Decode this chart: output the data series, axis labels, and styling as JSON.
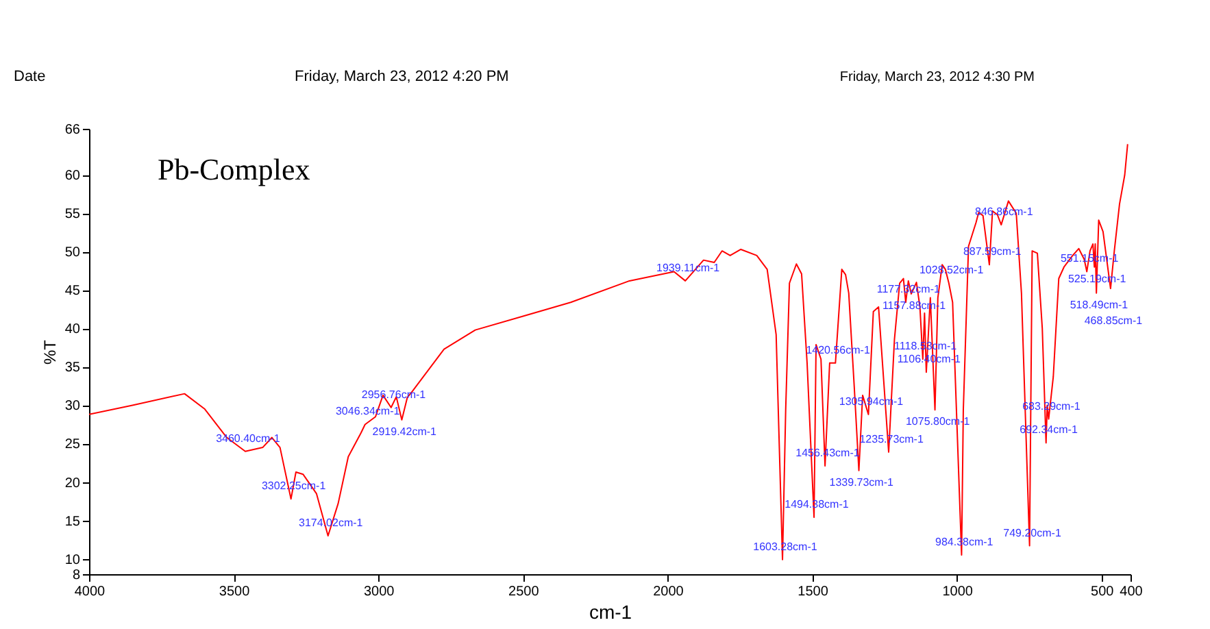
{
  "chart_data": {
    "type": "line",
    "title": "Pb-Complex",
    "xlabel": "cm-1",
    "ylabel": "%T",
    "annotations": [
      "Date",
      "Friday, March 23, 2012 4:20 PM",
      "Friday, March 23, 2012 4:30 PM",
      {
        "text": "3460.40cm-1",
        "x": 3460.4,
        "y": 24.0
      },
      {
        "text": "3302.25cm-1",
        "x": 3302.25,
        "y": 17.8
      },
      {
        "text": "3174.02cm-1",
        "x": 3174.02,
        "y": 13.0
      },
      {
        "text": "3046.34cm-1",
        "x": 3046.34,
        "y": 27.5
      },
      {
        "text": "2956.76cm-1",
        "x": 2956.76,
        "y": 29.7
      },
      {
        "text": "2919.42cm-1",
        "x": 2919.42,
        "y": 28.1
      },
      {
        "text": "1939.11cm-1",
        "x": 1939.11,
        "y": 46.2
      },
      {
        "text": "1603.28cm-1",
        "x": 1603.28,
        "y": 9.9
      },
      {
        "text": "1494.38cm-1",
        "x": 1494.38,
        "y": 15.4
      },
      {
        "text": "1456.43cm-1",
        "x": 1456.43,
        "y": 22.1
      },
      {
        "text": "1420.56cm-1",
        "x": 1420.56,
        "y": 35.5
      },
      {
        "text": "1339.73cm-1",
        "x": 1339.73,
        "y": 21.5
      },
      {
        "text": "1305.94cm-1",
        "x": 1305.94,
        "y": 28.8
      },
      {
        "text": "1235.73cm-1",
        "x": 1235.73,
        "y": 23.9
      },
      {
        "text": "1177.32cm-1",
        "x": 1177.32,
        "y": 43.4
      },
      {
        "text": "1157.88cm-1",
        "x": 1157.88,
        "y": 44.5
      },
      {
        "text": "1118.53cm-1",
        "x": 1118.53,
        "y": 36.0
      },
      {
        "text": "1106.40cm-1",
        "x": 1106.4,
        "y": 34.3
      },
      {
        "text": "1075.80cm-1",
        "x": 1075.8,
        "y": 29.4
      },
      {
        "text": "1028.52cm-1",
        "x": 1028.52,
        "y": 45.9
      },
      {
        "text": "984.38cm-1",
        "x": 984.38,
        "y": 10.5
      },
      {
        "text": "887.59cm-1",
        "x": 887.59,
        "y": 48.3
      },
      {
        "text": "846.86cm-1",
        "x": 846.86,
        "y": 53.5
      },
      {
        "text": "749.20cm-1",
        "x": 749.2,
        "y": 11.7
      },
      {
        "text": "692.34cm-1",
        "x": 692.34,
        "y": 25.1
      },
      {
        "text": "683.29cm-1",
        "x": 683.29,
        "y": 28.2
      },
      {
        "text": "551.15cm-1",
        "x": 551.15,
        "y": 47.4
      },
      {
        "text": "525.19cm-1",
        "x": 525.19,
        "y": 48.0
      },
      {
        "text": "518.49cm-1",
        "x": 518.49,
        "y": 44.6
      },
      {
        "text": "468.85cm-1",
        "x": 468.85,
        "y": 45.2
      }
    ],
    "xlim": [
      4000,
      400
    ],
    "xticks": [
      4000,
      3500,
      3000,
      2500,
      2000,
      1500,
      1000,
      500,
      400
    ],
    "ylim": [
      8,
      66
    ],
    "yticks": [
      8,
      10,
      15,
      20,
      25,
      30,
      35,
      40,
      45,
      50,
      55,
      60,
      66
    ],
    "grid": false,
    "marker": "none",
    "line_style": "solid",
    "series": [
      {
        "color": "#ff0000",
        "x": [
          4000,
          3850,
          3670,
          3600,
          3524,
          3460,
          3400,
          3368,
          3340,
          3302,
          3285,
          3260,
          3214,
          3174,
          3139,
          3104,
          3060,
          3046,
          3010,
          2984,
          2956,
          2938,
          2919,
          2900,
          2883,
          2773,
          2665,
          2500,
          2335,
          2132,
          1978,
          1939,
          1876,
          1839,
          1812,
          1784,
          1747,
          1692,
          1656,
          1625,
          1603,
          1592,
          1579,
          1555,
          1537,
          1518,
          1494,
          1487,
          1470,
          1456,
          1440,
          1420,
          1398,
          1385,
          1374,
          1355,
          1339,
          1326,
          1306,
          1289,
          1271,
          1253,
          1236,
          1216,
          1198,
          1185,
          1177,
          1168,
          1158,
          1140,
          1128,
          1118,
          1112,
          1106,
          1092,
          1076,
          1066,
          1051,
          1040,
          1028,
          1015,
          984,
          978,
          960,
          934,
          925,
          910,
          888,
          877,
          860,
          847,
          822,
          795,
          777,
          749,
          740,
          722,
          705,
          692,
          688,
          683,
          667,
          648,
          630,
          600,
          579,
          560,
          551,
          540,
          530,
          525,
          522,
          518,
          510,
          495,
          469,
          456,
          438,
          420,
          410
        ],
        "values": [
          28.8,
          30.0,
          31.5,
          29.5,
          25.8,
          24.0,
          24.5,
          25.8,
          24.5,
          17.8,
          21.3,
          21.0,
          18.5,
          13.0,
          17.2,
          23.3,
          26.4,
          27.5,
          28.5,
          31.3,
          29.7,
          31.1,
          28.1,
          31.0,
          31.8,
          37.3,
          39.8,
          41.6,
          43.4,
          46.2,
          47.4,
          46.2,
          48.9,
          48.6,
          50.1,
          49.5,
          50.3,
          49.5,
          47.7,
          39.2,
          9.9,
          29.4,
          45.9,
          48.4,
          47.1,
          35.5,
          15.4,
          37.9,
          36.0,
          22.1,
          35.5,
          35.5,
          47.7,
          47.0,
          44.6,
          32.4,
          21.5,
          31.3,
          28.8,
          42.2,
          42.8,
          33.1,
          23.9,
          38.6,
          45.9,
          46.5,
          43.4,
          46.2,
          44.5,
          46.0,
          42.8,
          36.0,
          42.0,
          34.3,
          44.0,
          29.4,
          44.0,
          48.3,
          47.7,
          45.9,
          43.4,
          10.5,
          29.4,
          50.7,
          53.8,
          55.1,
          54.7,
          48.3,
          55.3,
          54.8,
          53.5,
          56.6,
          55.0,
          44.6,
          11.7,
          50.1,
          49.8,
          40.0,
          25.1,
          30.0,
          28.2,
          33.7,
          46.5,
          48.0,
          49.5,
          50.4,
          49.0,
          47.4,
          50.1,
          51.0,
          48.0,
          51.0,
          44.6,
          54.1,
          52.6,
          45.2,
          50.1,
          56.2,
          60.0,
          64.0
        ]
      }
    ]
  }
}
